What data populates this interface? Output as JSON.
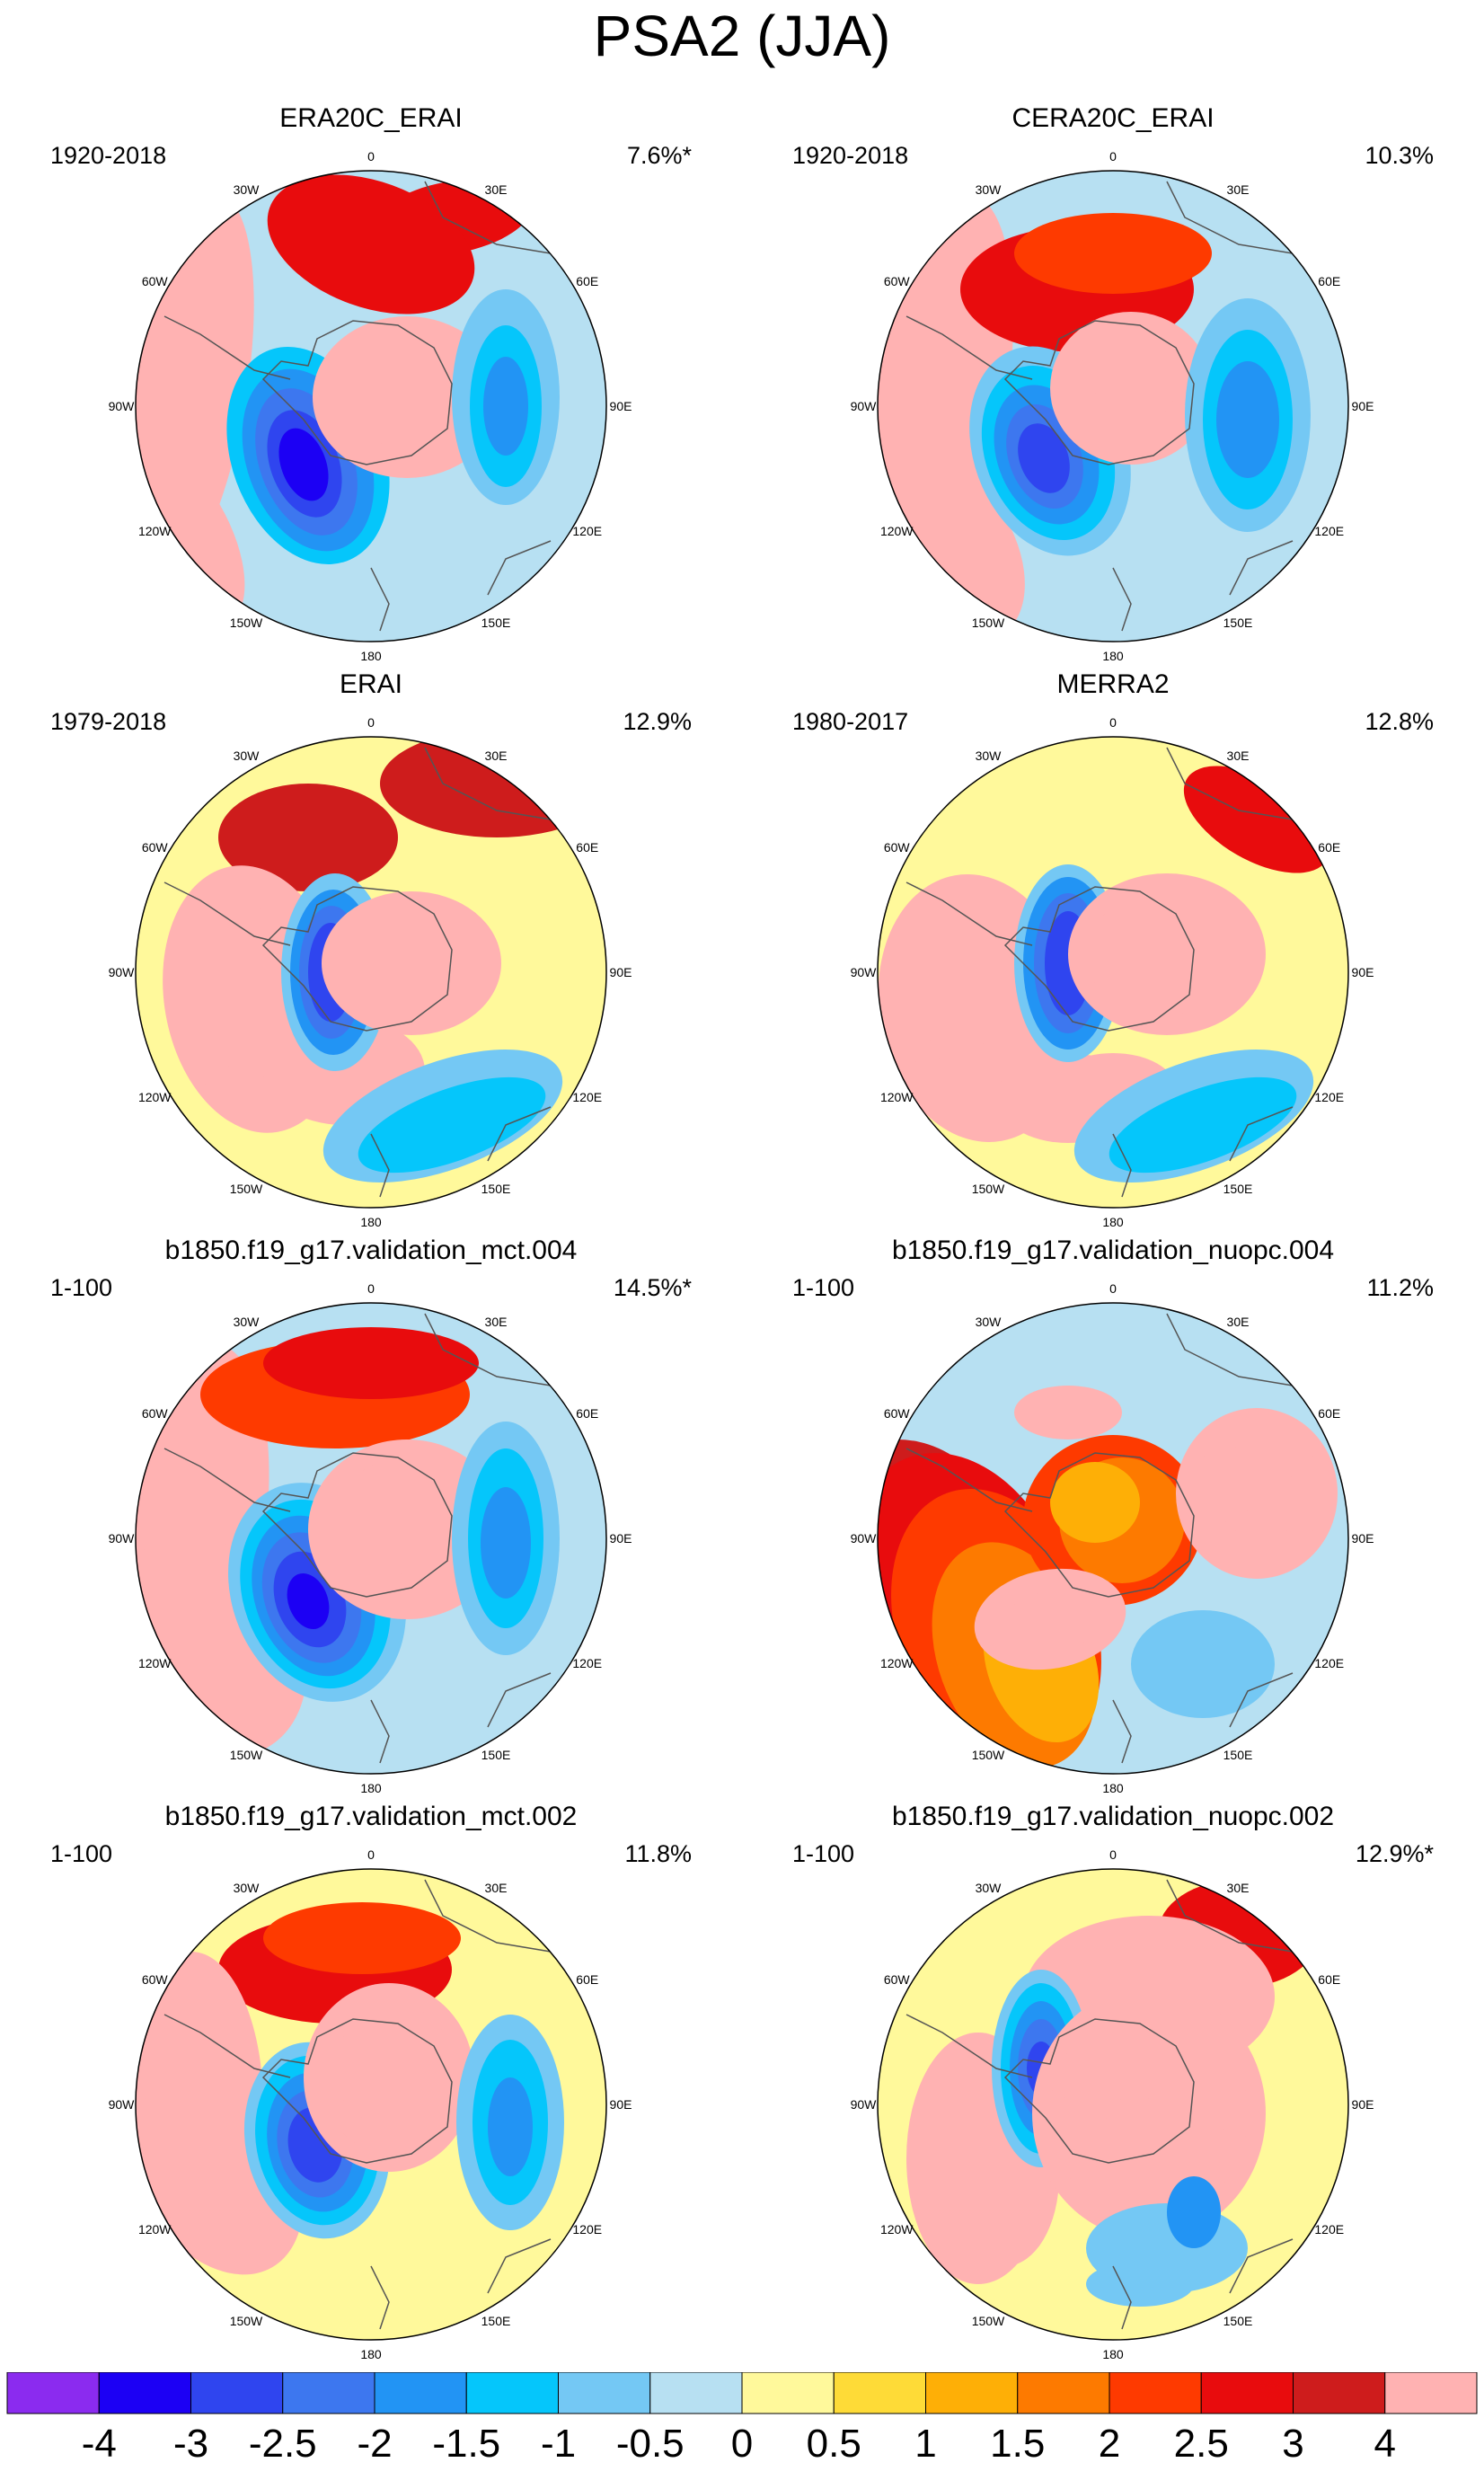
{
  "title": "PSA2 (JJA)",
  "panels": [
    {
      "title": "ERA20C_ERAI",
      "period": "1920-2018",
      "variance": "7.6%*"
    },
    {
      "title": "CERA20C_ERAI",
      "period": "1920-2018",
      "variance": "10.3%"
    },
    {
      "title": "ERAI",
      "period": "1979-2018",
      "variance": "12.9%"
    },
    {
      "title": "MERRA2",
      "period": "1980-2017",
      "variance": "12.8%"
    },
    {
      "title": "b1850.f19_g17.validation_mct.004",
      "period": "1-100",
      "variance": "14.5%*"
    },
    {
      "title": "b1850.f19_g17.validation_nuopc.004",
      "period": "1-100",
      "variance": "11.2%"
    },
    {
      "title": "b1850.f19_g17.validation_mct.002",
      "period": "1-100",
      "variance": "11.8%"
    },
    {
      "title": "b1850.f19_g17.validation_nuopc.002",
      "period": "1-100",
      "variance": "12.9%*"
    }
  ],
  "longitude_labels": {
    "n0": "0",
    "e30": "30E",
    "e60": "60E",
    "e90": "90E",
    "e120": "120E",
    "e150": "150E",
    "s180": "180",
    "w150": "150W",
    "w120": "120W",
    "w90": "90W",
    "w60": "60W",
    "w30": "30W"
  },
  "colorbar": {
    "ticks": [
      "-4",
      "-3",
      "-2.5",
      "-2",
      "-1.5",
      "-1",
      "-0.5",
      "0",
      "0.5",
      "1",
      "1.5",
      "2",
      "2.5",
      "3",
      "4"
    ],
    "colors": [
      "#8b2bef",
      "#1c00f4",
      "#2f45ef",
      "#3d77ef",
      "#2294f4",
      "#05c6fb",
      "#74c8f4",
      "#b7e0f2",
      "#fff99b",
      "#fedb37",
      "#feaf06",
      "#fd7a00",
      "#fe3a00",
      "#e80c0d",
      "#ce1c1c",
      "#ffb2b2"
    ]
  }
}
